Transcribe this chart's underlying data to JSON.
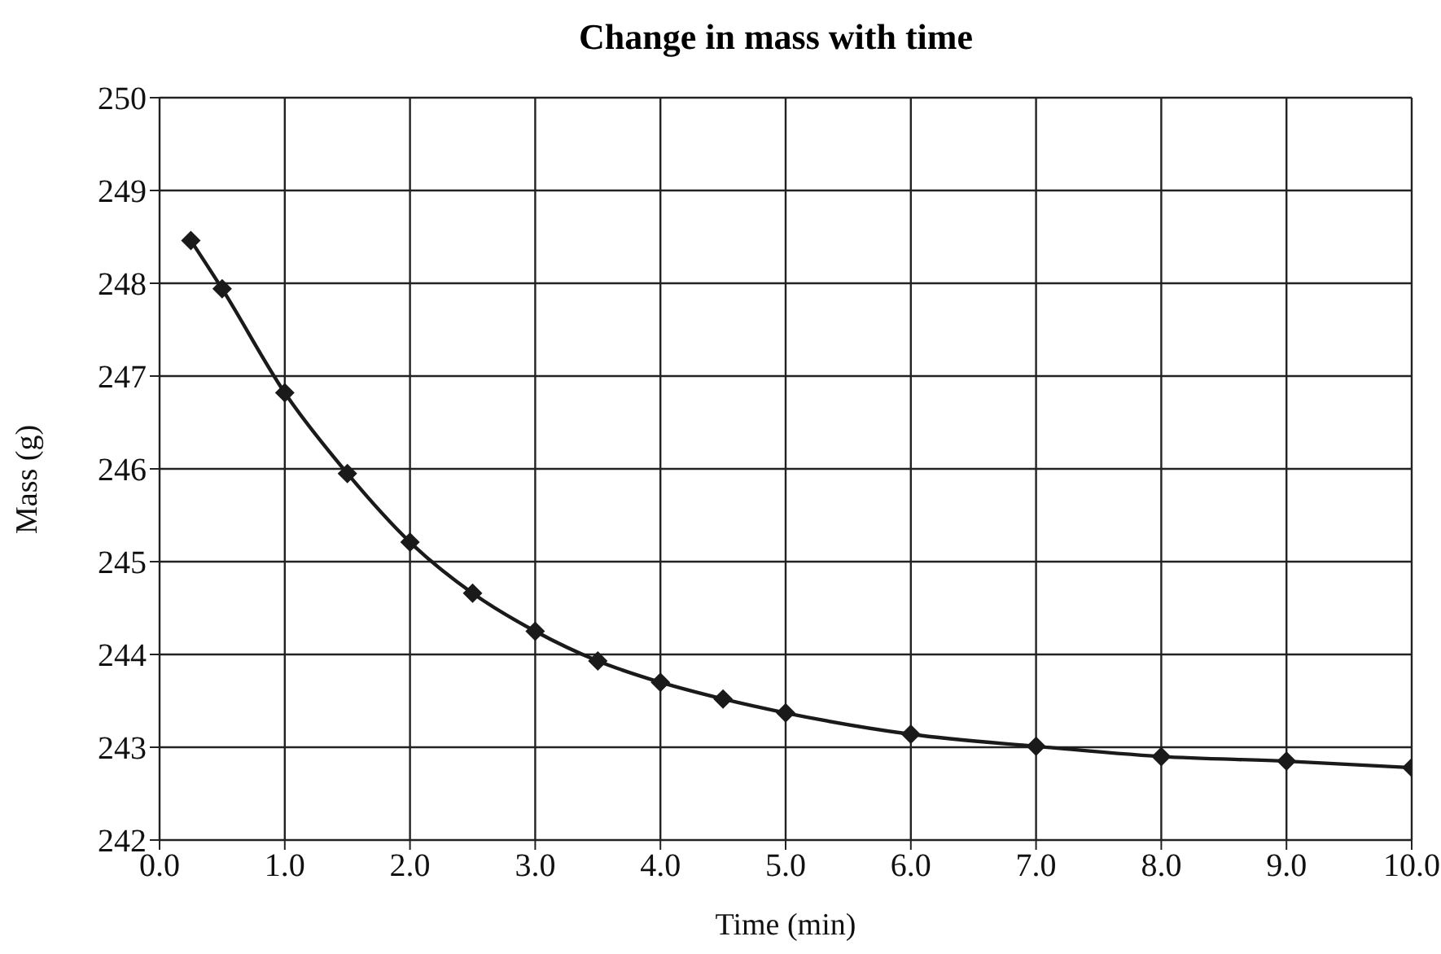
{
  "chart_data": {
    "type": "line",
    "title": "Change in mass with time",
    "xlabel": "Time (min)",
    "ylabel": "Mass (g)",
    "x": [
      0.25,
      0.5,
      1.0,
      1.5,
      2.0,
      2.5,
      3.0,
      3.5,
      4.0,
      4.5,
      5.0,
      6.0,
      7.0,
      8.0,
      9.0,
      10.0
    ],
    "series": [
      {
        "color": "#1a1a1a",
        "values": [
          248.46,
          247.94,
          246.82,
          245.95,
          245.21,
          244.66,
          244.25,
          243.93,
          243.7,
          243.52,
          243.37,
          243.14,
          243.01,
          242.9,
          242.85,
          242.78
        ]
      }
    ],
    "xlim": [
      0,
      10
    ],
    "xticks": [
      {
        "value": 0,
        "label": "0.0"
      },
      {
        "value": 1,
        "label": "1.0"
      },
      {
        "value": 2,
        "label": "2.0"
      },
      {
        "value": 3,
        "label": "3.0"
      },
      {
        "value": 4,
        "label": "4.0"
      },
      {
        "value": 5,
        "label": "5.0"
      },
      {
        "value": 6,
        "label": "6.0"
      },
      {
        "value": 7,
        "label": "7.0"
      },
      {
        "value": 8,
        "label": "8.0"
      },
      {
        "value": 9,
        "label": "9.0"
      },
      {
        "value": 10,
        "label": "10.0"
      }
    ],
    "ylim": [
      242,
      250
    ],
    "yticks": [
      242,
      243,
      244,
      245,
      246,
      247,
      248,
      249,
      250
    ],
    "grid": true,
    "legend": false,
    "marker": "diamond",
    "line_style": "solid"
  }
}
